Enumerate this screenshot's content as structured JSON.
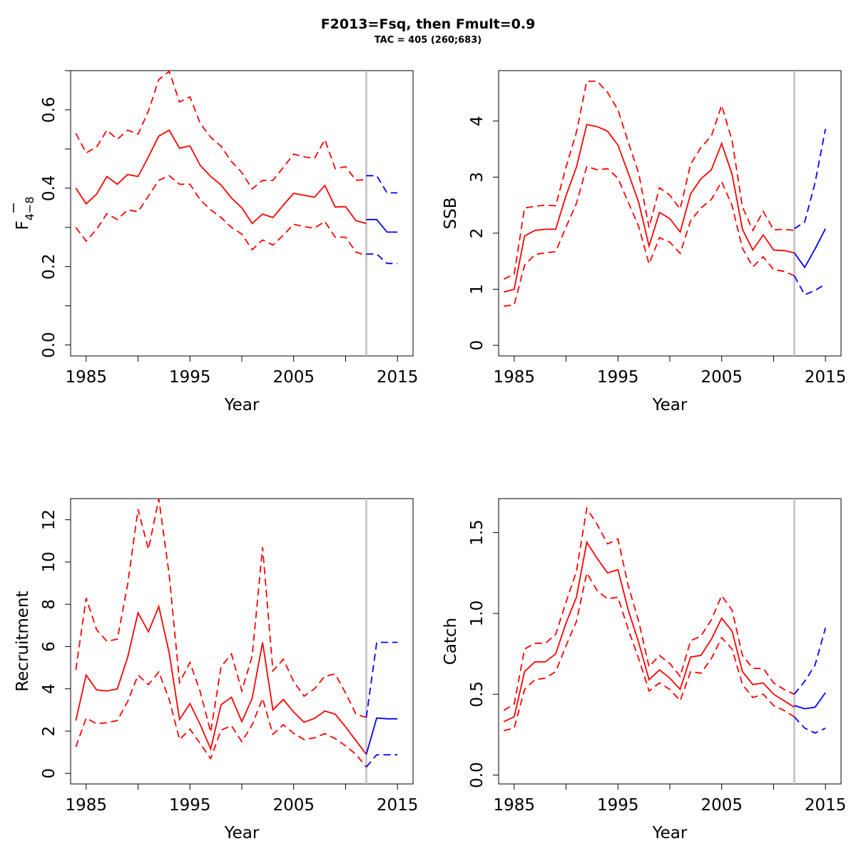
{
  "figure": {
    "title": "F2013=Fsq, then Fmult=0.9",
    "subtitle": "TAC = 405 (260;683)"
  },
  "colors": {
    "historic": "#ff0000",
    "projection": "#0000ff",
    "separator": "#c0c0c0"
  },
  "chart_data": [
    {
      "type": "line",
      "panel": "top-left",
      "xlabel": "Year",
      "ylabel_main": "F",
      "ylabel_sub": "4−8",
      "xlim": [
        1983.5,
        2016.5
      ],
      "ylim": [
        -0.028,
        0.7
      ],
      "xticks": [
        1985,
        1995,
        2005,
        2015
      ],
      "xminor": [
        1990,
        2000,
        2010
      ],
      "yticks": [
        0.0,
        0.2,
        0.4,
        0.6
      ],
      "ytick_labels": [
        "0.0",
        "0.2",
        "0.4",
        "0.6"
      ],
      "yminor": [
        0.1,
        0.3,
        0.5,
        0.7
      ],
      "separator_x": 2012,
      "historic": {
        "years": [
          1984,
          1985,
          1986,
          1987,
          1988,
          1989,
          1990,
          1991,
          1992,
          1993,
          1994,
          1995,
          1996,
          1997,
          1998,
          1999,
          2000,
          2001,
          2002,
          2003,
          2004,
          2005,
          2006,
          2007,
          2008,
          2009,
          2010,
          2011,
          2012
        ],
        "estimate": [
          0.4,
          0.36,
          0.385,
          0.43,
          0.41,
          0.435,
          0.43,
          0.48,
          0.533,
          0.548,
          0.502,
          0.508,
          0.458,
          0.43,
          0.408,
          0.375,
          0.35,
          0.31,
          0.334,
          0.325,
          0.357,
          0.387,
          0.382,
          0.377,
          0.407,
          0.352,
          0.353,
          0.317,
          0.31
        ],
        "lower": [
          0.3,
          0.265,
          0.295,
          0.335,
          0.32,
          0.345,
          0.34,
          0.38,
          0.42,
          0.432,
          0.41,
          0.41,
          0.37,
          0.345,
          0.325,
          0.3,
          0.283,
          0.243,
          0.268,
          0.255,
          0.28,
          0.308,
          0.302,
          0.298,
          0.315,
          0.275,
          0.275,
          0.237,
          0.228
        ],
        "upper": [
          0.54,
          0.49,
          0.505,
          0.548,
          0.525,
          0.548,
          0.538,
          0.597,
          0.677,
          0.698,
          0.62,
          0.633,
          0.565,
          0.53,
          0.507,
          0.468,
          0.44,
          0.398,
          0.42,
          0.42,
          0.453,
          0.487,
          0.48,
          0.476,
          0.524,
          0.45,
          0.455,
          0.42,
          0.422
        ]
      },
      "projection": {
        "years": [
          2012,
          2013,
          2014,
          2015
        ],
        "estimate": [
          0.32,
          0.32,
          0.288,
          0.288
        ],
        "lower": [
          0.232,
          0.232,
          0.208,
          0.208
        ],
        "upper": [
          0.432,
          0.432,
          0.388,
          0.388
        ]
      }
    },
    {
      "type": "line",
      "panel": "top-right",
      "xlabel": "Year",
      "ylabel": "SSB",
      "xlim": [
        1983.5,
        2016.5
      ],
      "ylim": [
        -0.19,
        4.9
      ],
      "xticks": [
        1985,
        1995,
        2005,
        2015
      ],
      "xminor": [
        1990,
        2000,
        2010
      ],
      "yticks": [
        0,
        1,
        2,
        3,
        4
      ],
      "ytick_labels": [
        "0",
        "1",
        "2",
        "3",
        "4"
      ],
      "yminor": [],
      "separator_x": 2012,
      "historic": {
        "years": [
          1984,
          1985,
          1986,
          1987,
          1988,
          1989,
          1990,
          1991,
          1992,
          1993,
          1994,
          1995,
          1996,
          1997,
          1998,
          1999,
          2000,
          2001,
          2002,
          2003,
          2004,
          2005,
          2006,
          2007,
          2008,
          2009,
          2010,
          2011,
          2012
        ],
        "estimate": [
          0.95,
          1.0,
          1.95,
          2.05,
          2.07,
          2.07,
          2.67,
          3.18,
          3.94,
          3.9,
          3.82,
          3.57,
          3.07,
          2.55,
          1.77,
          2.37,
          2.26,
          2.02,
          2.7,
          2.97,
          3.13,
          3.6,
          3.05,
          2.07,
          1.7,
          1.97,
          1.7,
          1.69,
          1.65
        ],
        "lower": [
          0.7,
          0.72,
          1.43,
          1.62,
          1.65,
          1.67,
          2.11,
          2.53,
          3.19,
          3.13,
          3.15,
          2.98,
          2.55,
          2.12,
          1.45,
          1.92,
          1.84,
          1.64,
          2.22,
          2.45,
          2.6,
          2.92,
          2.49,
          1.73,
          1.4,
          1.58,
          1.35,
          1.32,
          1.24
        ],
        "upper": [
          1.18,
          1.27,
          2.45,
          2.48,
          2.5,
          2.49,
          3.18,
          3.8,
          4.71,
          4.71,
          4.51,
          4.2,
          3.62,
          3.07,
          2.1,
          2.81,
          2.68,
          2.43,
          3.23,
          3.53,
          3.73,
          4.28,
          3.65,
          2.47,
          2.05,
          2.39,
          2.06,
          2.07,
          2.05
        ]
      },
      "projection": {
        "years": [
          2012,
          2013,
          2014,
          2015
        ],
        "estimate": [
          1.65,
          1.39,
          1.72,
          2.08
        ],
        "lower": [
          1.24,
          0.9,
          0.98,
          1.09
        ],
        "upper": [
          2.08,
          2.2,
          2.9,
          3.86
        ]
      }
    },
    {
      "type": "line",
      "panel": "bottom-left",
      "xlabel": "Year",
      "ylabel": "Recruitment",
      "xlim": [
        1983.5,
        2016.5
      ],
      "ylim": [
        -0.5,
        13.0
      ],
      "xticks": [
        1985,
        1995,
        2005,
        2015
      ],
      "xminor": [
        1990,
        2000,
        2010
      ],
      "yticks": [
        0,
        2,
        4,
        6,
        8,
        10,
        12
      ],
      "ytick_labels": [
        "0",
        "2",
        "4",
        "6",
        "8",
        "10",
        "12"
      ],
      "yminor": [],
      "separator_x": 2012,
      "historic": {
        "years": [
          1984,
          1985,
          1986,
          1987,
          1988,
          1989,
          1990,
          1991,
          1992,
          1993,
          1994,
          1995,
          1996,
          1997,
          1998,
          1999,
          2000,
          2001,
          2002,
          2003,
          2004,
          2005,
          2006,
          2007,
          2008,
          2009,
          2010,
          2011,
          2012
        ],
        "estimate": [
          2.5,
          4.65,
          3.95,
          3.9,
          4.0,
          5.5,
          7.6,
          6.7,
          7.9,
          5.7,
          2.55,
          3.3,
          2.3,
          1.15,
          3.25,
          3.6,
          2.45,
          3.55,
          6.2,
          3.0,
          3.5,
          2.9,
          2.42,
          2.6,
          2.95,
          2.8,
          2.2,
          1.55,
          0.9
        ],
        "lower": [
          1.25,
          2.62,
          2.35,
          2.4,
          2.5,
          3.4,
          4.65,
          4.2,
          4.8,
          3.5,
          1.6,
          2.1,
          1.4,
          0.7,
          2.05,
          2.25,
          1.5,
          2.3,
          3.55,
          1.85,
          2.3,
          1.9,
          1.6,
          1.68,
          1.88,
          1.65,
          1.3,
          0.9,
          0.3
        ],
        "upper": [
          4.9,
          8.3,
          6.8,
          6.25,
          6.35,
          8.95,
          12.5,
          10.6,
          13.0,
          9.4,
          4.3,
          5.25,
          3.85,
          1.95,
          5.05,
          5.65,
          3.9,
          5.55,
          10.7,
          4.85,
          5.4,
          4.35,
          3.65,
          4.0,
          4.6,
          4.7,
          3.8,
          2.8,
          2.65
        ]
      },
      "projection": {
        "years": [
          2012,
          2013,
          2014,
          2015
        ],
        "estimate": [
          0.9,
          2.62,
          2.58,
          2.58
        ],
        "lower": [
          0.3,
          0.88,
          0.88,
          0.88
        ],
        "upper": [
          2.65,
          6.2,
          6.2,
          6.2
        ]
      }
    },
    {
      "type": "line",
      "panel": "bottom-right",
      "xlabel": "Year",
      "ylabel": "Catch",
      "xlim": [
        1983.5,
        2016.5
      ],
      "ylim": [
        -0.055,
        1.71
      ],
      "xticks": [
        1985,
        1995,
        2005,
        2015
      ],
      "xminor": [
        1990,
        2000,
        2010
      ],
      "yticks": [
        0.0,
        0.5,
        1.0,
        1.5
      ],
      "ytick_labels": [
        "0.0",
        "0.5",
        "1.0",
        "1.5"
      ],
      "yminor": [],
      "separator_x": 2012,
      "historic": {
        "years": [
          1984,
          1985,
          1986,
          1987,
          1988,
          1989,
          1990,
          1991,
          1992,
          1993,
          1994,
          1995,
          1996,
          1997,
          1998,
          1999,
          2000,
          2001,
          2002,
          2003,
          2004,
          2005,
          2006,
          2007,
          2008,
          2009,
          2010,
          2011,
          2012
        ],
        "estimate": [
          0.33,
          0.36,
          0.64,
          0.7,
          0.7,
          0.75,
          0.94,
          1.1,
          1.44,
          1.34,
          1.25,
          1.27,
          1.02,
          0.82,
          0.59,
          0.65,
          0.6,
          0.53,
          0.73,
          0.74,
          0.84,
          0.97,
          0.89,
          0.64,
          0.56,
          0.57,
          0.5,
          0.46,
          0.42
        ],
        "lower": [
          0.275,
          0.29,
          0.53,
          0.59,
          0.6,
          0.64,
          0.8,
          0.95,
          1.25,
          1.14,
          1.09,
          1.1,
          0.9,
          0.72,
          0.52,
          0.57,
          0.53,
          0.46,
          0.64,
          0.63,
          0.72,
          0.85,
          0.78,
          0.56,
          0.48,
          0.5,
          0.43,
          0.4,
          0.36
        ],
        "upper": [
          0.4,
          0.44,
          0.78,
          0.815,
          0.815,
          0.87,
          1.07,
          1.26,
          1.65,
          1.55,
          1.43,
          1.46,
          1.17,
          0.95,
          0.67,
          0.74,
          0.69,
          0.61,
          0.83,
          0.86,
          0.96,
          1.11,
          1.02,
          0.74,
          0.66,
          0.66,
          0.57,
          0.53,
          0.5
        ],
        "_comment": ""
      },
      "projection": {
        "years": [
          2012,
          2013,
          2014,
          2015
        ],
        "estimate": [
          0.43,
          0.41,
          0.42,
          0.51
        ],
        "lower": [
          0.36,
          0.29,
          0.26,
          0.29
        ],
        "upper": [
          0.5,
          0.58,
          0.68,
          0.91
        ]
      }
    }
  ]
}
